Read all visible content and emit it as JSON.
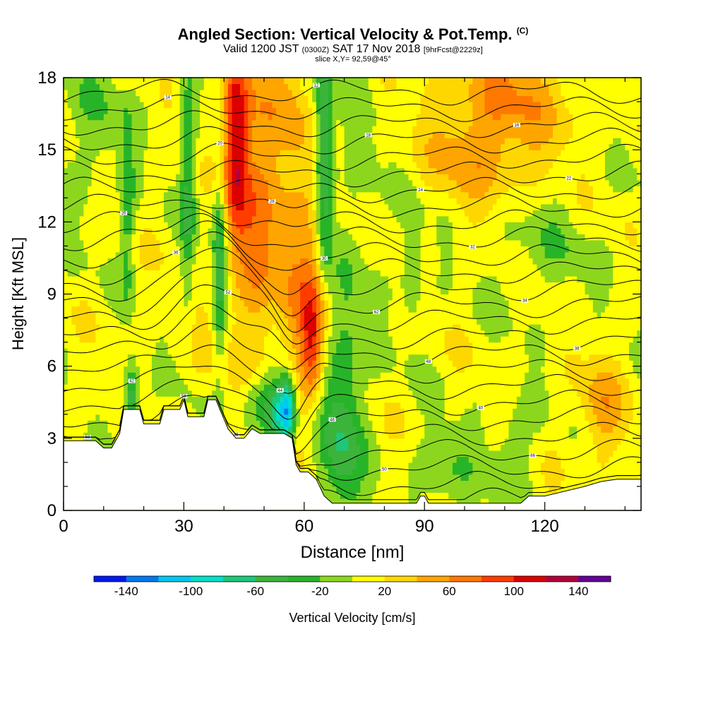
{
  "titles": {
    "line1_main": "Angled Section: Vertical Velocity & Pot.Temp.",
    "line1_tag": "(C)",
    "line2_a": "Valid 1200 JST",
    "line2_b": "(0300Z)",
    "line2_c": "SAT 17 Nov 2018",
    "line2_d": "[9hrFcst@2229z]",
    "line3": "slice X,Y= 92,59@45°"
  },
  "chart_data": {
    "type": "heatmap",
    "xlabel": "Distance [nm]",
    "ylabel": "Height [Kft MSL]",
    "xlim": [
      0,
      144
    ],
    "ylim": [
      0,
      18
    ],
    "x_ticks": [
      0,
      30,
      60,
      90,
      120
    ],
    "y_ticks": [
      0,
      3,
      6,
      9,
      12,
      15,
      18
    ],
    "colorbar": {
      "label": "Vertical Velocity [cm/s]",
      "tick_labels": [
        "-140",
        "-100",
        "-60",
        "-20",
        "20",
        "60",
        "100",
        "140"
      ],
      "bounds": [
        -160,
        -140,
        -120,
        -100,
        -80,
        -60,
        -40,
        -20,
        0,
        20,
        40,
        60,
        80,
        100,
        120,
        140,
        160
      ],
      "colors": [
        "#0018f0",
        "#0078f0",
        "#00c8f0",
        "#00e0c8",
        "#1ec878",
        "#3cb43c",
        "#28b428",
        "#8cd71e",
        "#ffff00",
        "#ffd700",
        "#ffa500",
        "#ff7800",
        "#ff3c00",
        "#dc0000",
        "#b4003c",
        "#640096"
      ]
    },
    "velocity_features": [
      {
        "x": 43,
        "y": 15.5,
        "sx": 2.2,
        "sy": 3.0,
        "amp": 95
      },
      {
        "x": 48,
        "y": 13,
        "sx": 4.5,
        "sy": 5.5,
        "amp": 55
      },
      {
        "x": 58,
        "y": 11,
        "sx": 3.5,
        "sy": 6.0,
        "amp": 40
      },
      {
        "x": 62,
        "y": 6.8,
        "sx": 2.0,
        "sy": 1.6,
        "amp": 70
      },
      {
        "x": 64,
        "y": 9.5,
        "sx": 3.0,
        "sy": 2.0,
        "amp": 35
      },
      {
        "x": 65,
        "y": 16,
        "sx": 1.6,
        "sy": 3.0,
        "amp": -60
      },
      {
        "x": 65,
        "y": 12,
        "sx": 1.5,
        "sy": 2.5,
        "amp": -40
      },
      {
        "x": 56,
        "y": 4.2,
        "sx": 1.5,
        "sy": 1.0,
        "amp": -125
      },
      {
        "x": 53,
        "y": 4.0,
        "sx": 2.0,
        "sy": 1.2,
        "amp": -80
      },
      {
        "x": 39,
        "y": 10.5,
        "sx": 1.2,
        "sy": 3.0,
        "amp": -60
      },
      {
        "x": 31,
        "y": 14,
        "sx": 1.3,
        "sy": 4.0,
        "amp": -45
      },
      {
        "x": 35,
        "y": 6.5,
        "sx": 2.5,
        "sy": 1.5,
        "amp": 15
      },
      {
        "x": 17,
        "y": 4.6,
        "sx": 1.2,
        "sy": 1.0,
        "amp": -70
      },
      {
        "x": 16,
        "y": 12.5,
        "sx": 1.2,
        "sy": 2.5,
        "amp": -40
      },
      {
        "x": 70,
        "y": 5.5,
        "sx": 3.5,
        "sy": 3.5,
        "amp": -45
      },
      {
        "x": 68,
        "y": 2.0,
        "sx": 4.0,
        "sy": 2.0,
        "amp": -35
      },
      {
        "x": 87,
        "y": 10,
        "sx": 2.0,
        "sy": 1.8,
        "amp": -30
      },
      {
        "x": 110,
        "y": 17,
        "sx": 12,
        "sy": 2.0,
        "amp": 45
      },
      {
        "x": 103,
        "y": 14.5,
        "sx": 8,
        "sy": 1.5,
        "amp": 28
      },
      {
        "x": 134,
        "y": 4.2,
        "sx": 4,
        "sy": 1.6,
        "amp": 40
      },
      {
        "x": 112,
        "y": 2.5,
        "sx": 4,
        "sy": 1.5,
        "amp": -25
      },
      {
        "x": 95,
        "y": 1.8,
        "sx": 5,
        "sy": 1.2,
        "amp": -30
      },
      {
        "x": 8,
        "y": 16,
        "sx": 6,
        "sy": 2.0,
        "amp": -22
      },
      {
        "x": 75,
        "y": 15,
        "sx": 3,
        "sy": 3.0,
        "amp": -15
      },
      {
        "x": 120,
        "y": 11,
        "sx": 10,
        "sy": 1.5,
        "amp": -18
      },
      {
        "x": 48,
        "y": 4.5,
        "sx": 3.0,
        "sy": 1.0,
        "amp": -45
      }
    ],
    "terrain": [
      [
        0,
        2.9
      ],
      [
        3,
        2.9
      ],
      [
        5,
        2.9
      ],
      [
        8,
        2.9
      ],
      [
        10,
        2.6
      ],
      [
        12,
        2.6
      ],
      [
        14,
        3.2
      ],
      [
        15,
        4.2
      ],
      [
        17,
        4.2
      ],
      [
        19,
        4.2
      ],
      [
        20,
        3.6
      ],
      [
        22,
        3.6
      ],
      [
        24,
        3.6
      ],
      [
        25,
        4.2
      ],
      [
        27,
        4.2
      ],
      [
        29,
        4.2
      ],
      [
        30,
        4.6
      ],
      [
        31,
        3.9
      ],
      [
        33,
        3.9
      ],
      [
        35,
        3.9
      ],
      [
        36,
        4.6
      ],
      [
        38,
        4.6
      ],
      [
        40,
        3.8
      ],
      [
        41,
        3.4
      ],
      [
        43,
        3.0
      ],
      [
        45,
        3.0
      ],
      [
        47,
        3.4
      ],
      [
        49,
        3.2
      ],
      [
        51,
        3.2
      ],
      [
        53,
        3.2
      ],
      [
        55,
        3.2
      ],
      [
        57,
        3.0
      ],
      [
        58,
        1.9
      ],
      [
        59,
        1.6
      ],
      [
        61,
        1.6
      ],
      [
        63,
        1.3
      ],
      [
        65,
        0.6
      ],
      [
        67,
        0.3
      ],
      [
        70,
        0.3
      ],
      [
        75,
        0.3
      ],
      [
        80,
        0.3
      ],
      [
        85,
        0.3
      ],
      [
        88,
        0.3
      ],
      [
        89,
        0.6
      ],
      [
        90,
        0.6
      ],
      [
        91,
        0.3
      ],
      [
        95,
        0.3
      ],
      [
        100,
        0.3
      ],
      [
        105,
        0.3
      ],
      [
        110,
        0.3
      ],
      [
        114,
        0.3
      ],
      [
        116,
        0.6
      ],
      [
        120,
        0.6
      ],
      [
        125,
        0.8
      ],
      [
        130,
        1.0
      ],
      [
        134,
        1.2
      ],
      [
        138,
        1.3
      ],
      [
        142,
        1.3
      ],
      [
        144,
        1.3
      ]
    ],
    "theta_contour_labels": [
      "58",
      "45",
      "50",
      "66",
      "56",
      "46",
      "40",
      "42",
      "44",
      "48",
      "38",
      "52",
      "62",
      "34",
      "36",
      "30",
      "32",
      "26",
      "28",
      "24",
      "22",
      "20",
      "18",
      "16",
      "14",
      "12"
    ]
  }
}
